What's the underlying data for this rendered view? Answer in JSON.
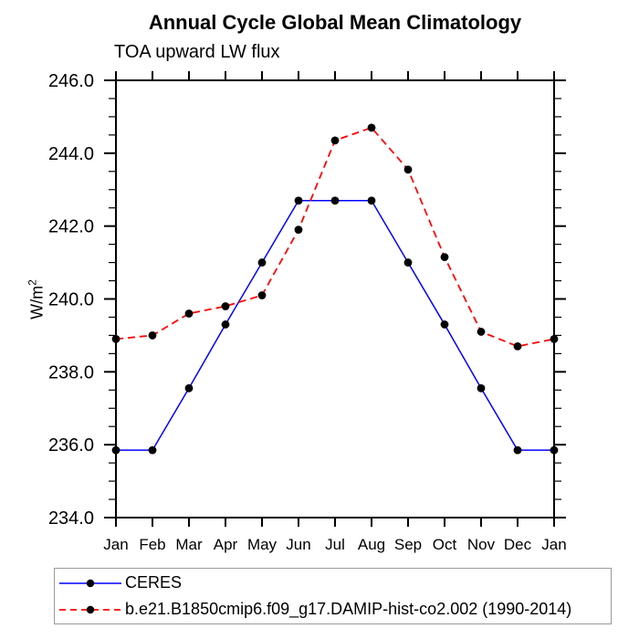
{
  "page": {
    "background_color": "#ffffff"
  },
  "chart_data": {
    "type": "line",
    "title": "Annual Cycle Global Mean Climatology",
    "subtitle": "TOA upward LW flux",
    "ylabel": {
      "base": "W/m",
      "sup": "2"
    },
    "xlabel": "",
    "categories": [
      "Jan",
      "Feb",
      "Mar",
      "Apr",
      "May",
      "Jun",
      "Jul",
      "Aug",
      "Sep",
      "Oct",
      "Nov",
      "Dec",
      "Jan"
    ],
    "ylim": [
      234.0,
      246.0
    ],
    "ytick_major_step": 2.0,
    "ytick_minor_step": 0.5,
    "ytick_labels": [
      "234.0",
      "236.0",
      "238.0",
      "240.0",
      "242.0",
      "244.0",
      "246.0"
    ],
    "grid": "off",
    "axis_color": "#000000",
    "legend": {
      "position": "below-plot-left",
      "border_color": "#9b9b9b"
    },
    "series": [
      {
        "name": "CERES",
        "color": "#0000ff",
        "line_style": "solid",
        "marker": "filled-circle",
        "marker_color": "#000000",
        "values": [
          235.85,
          235.85,
          237.55,
          239.3,
          241.0,
          242.7,
          242.7,
          242.7,
          241.0,
          239.3,
          237.55,
          235.85,
          235.85
        ]
      },
      {
        "name": "b.e21.B1850cmip6.f09_g17.DAMIP-hist-co2.002 (1990-2014)",
        "color": "#ff0000",
        "line_style": "dashed",
        "marker": "filled-circle",
        "marker_color": "#000000",
        "values": [
          238.9,
          239.0,
          239.6,
          239.8,
          240.1,
          241.9,
          244.35,
          244.7,
          243.55,
          241.15,
          239.1,
          238.7,
          238.9
        ]
      }
    ]
  }
}
